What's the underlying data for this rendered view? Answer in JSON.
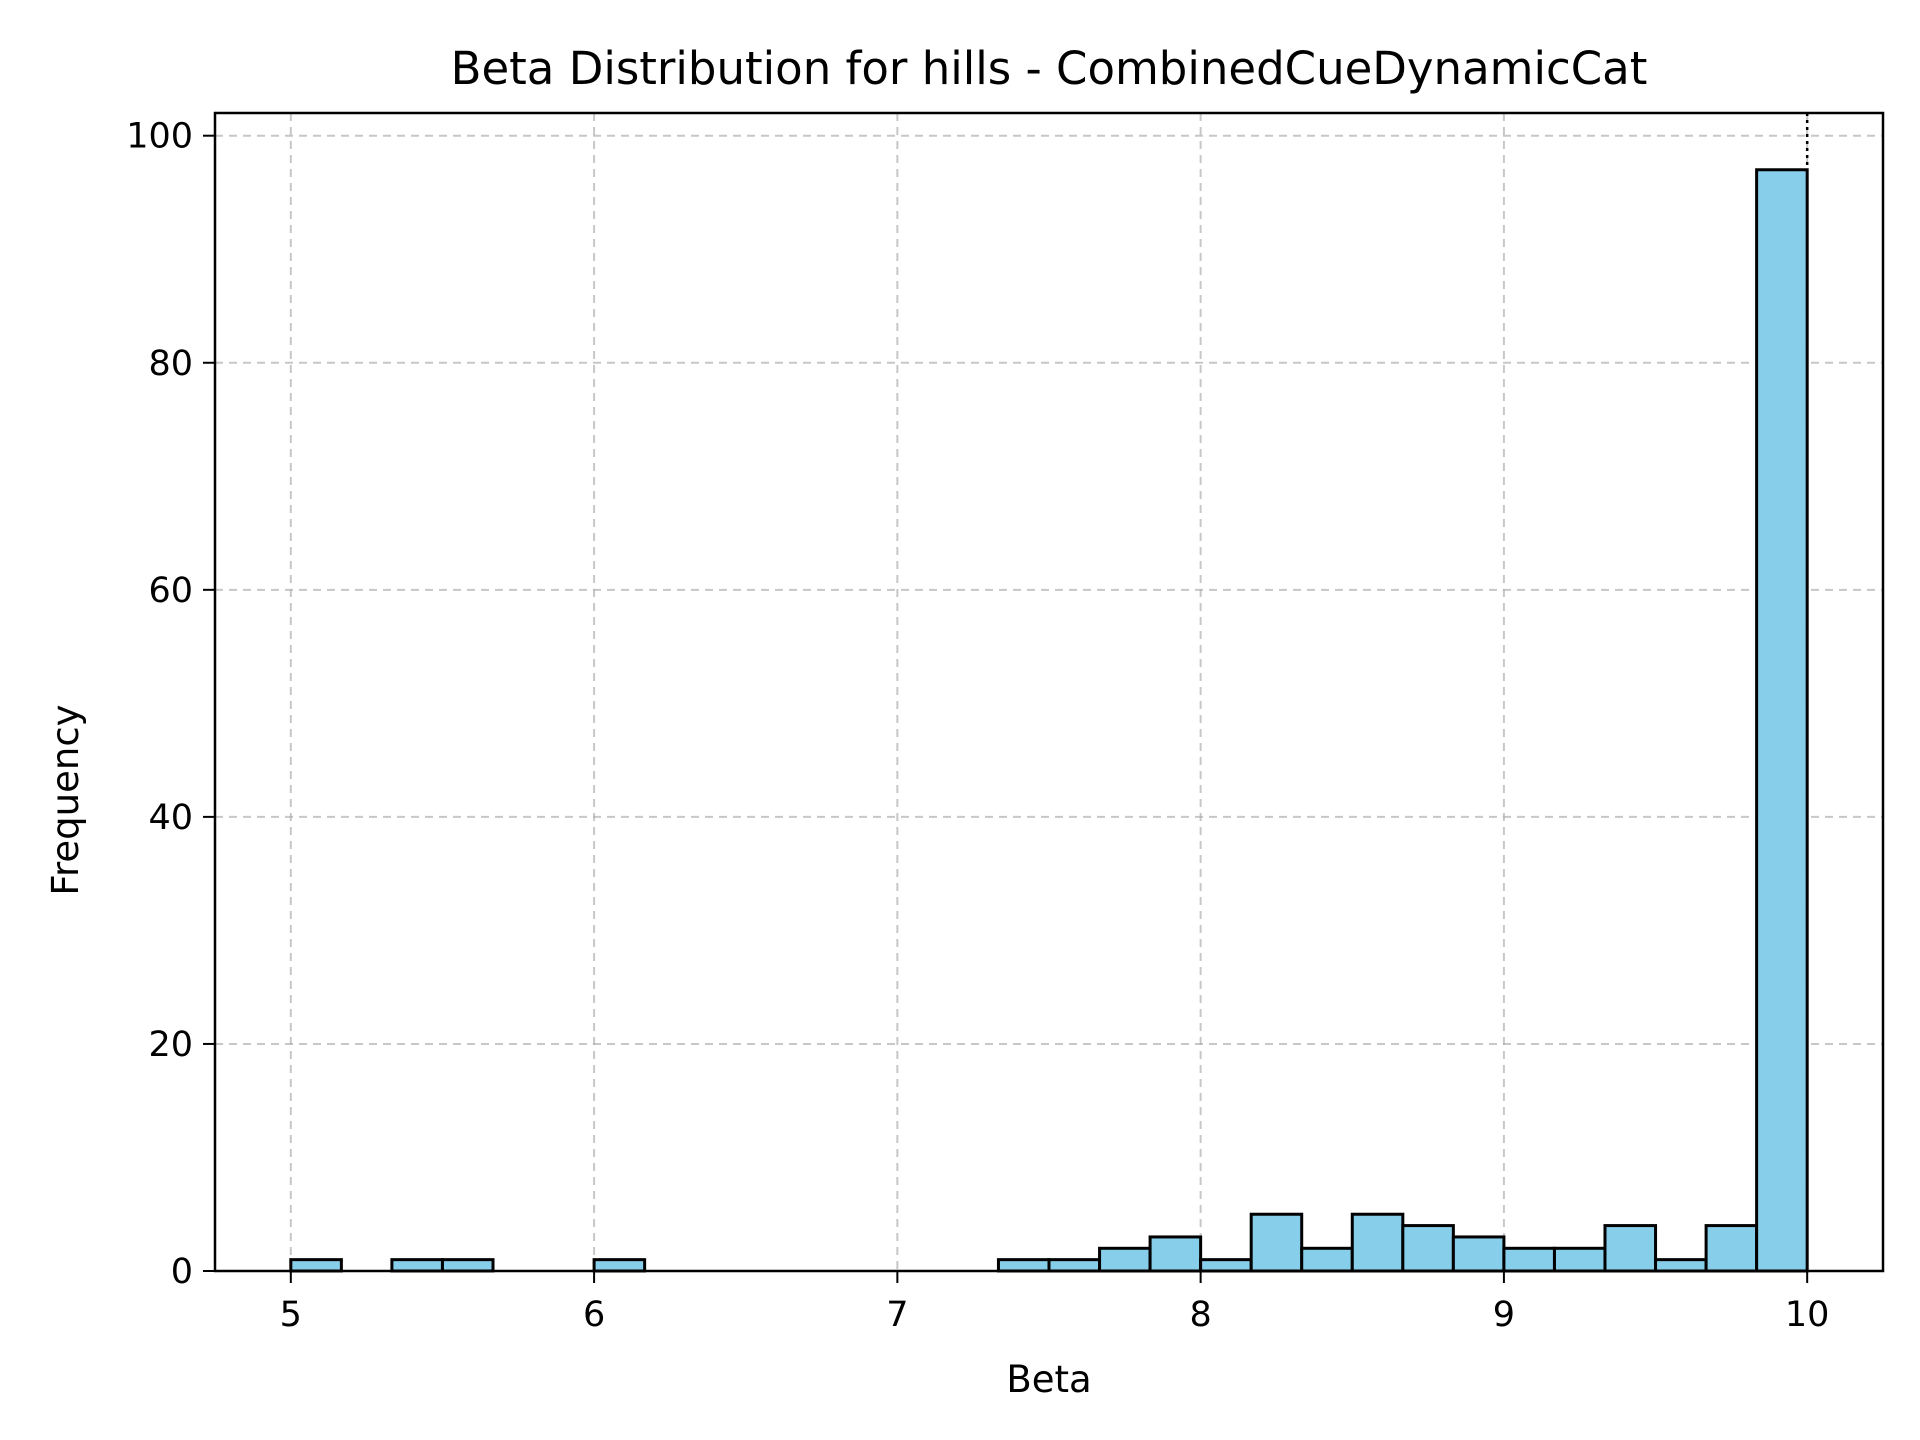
{
  "chart_data": {
    "type": "bar",
    "title": "Beta Distribution for hills - CombinedCueDynamicCat",
    "xlabel": "Beta",
    "ylabel": "Frequency",
    "xlim": [
      4.75,
      10.25
    ],
    "ylim": [
      0,
      102
    ],
    "xticks": [
      5,
      6,
      7,
      8,
      9,
      10
    ],
    "yticks": [
      0,
      20,
      40,
      60,
      80,
      100
    ],
    "grid": true,
    "bar_color": "#87CEEB",
    "edge_color": "#000000",
    "bins": [
      {
        "x0": 5.0,
        "x1": 5.1667,
        "count": 1
      },
      {
        "x0": 5.1667,
        "x1": 5.3333,
        "count": 0
      },
      {
        "x0": 5.3333,
        "x1": 5.5,
        "count": 1
      },
      {
        "x0": 5.5,
        "x1": 5.6667,
        "count": 1
      },
      {
        "x0": 5.6667,
        "x1": 5.8333,
        "count": 0
      },
      {
        "x0": 5.8333,
        "x1": 6.0,
        "count": 0
      },
      {
        "x0": 6.0,
        "x1": 6.1667,
        "count": 1
      },
      {
        "x0": 6.1667,
        "x1": 6.3333,
        "count": 0
      },
      {
        "x0": 6.3333,
        "x1": 6.5,
        "count": 0
      },
      {
        "x0": 6.5,
        "x1": 6.6667,
        "count": 0
      },
      {
        "x0": 6.6667,
        "x1": 6.8333,
        "count": 0
      },
      {
        "x0": 6.8333,
        "x1": 7.0,
        "count": 0
      },
      {
        "x0": 7.0,
        "x1": 7.1667,
        "count": 0
      },
      {
        "x0": 7.1667,
        "x1": 7.3333,
        "count": 0
      },
      {
        "x0": 7.3333,
        "x1": 7.5,
        "count": 1
      },
      {
        "x0": 7.5,
        "x1": 7.6667,
        "count": 1
      },
      {
        "x0": 7.6667,
        "x1": 7.8333,
        "count": 2
      },
      {
        "x0": 7.8333,
        "x1": 8.0,
        "count": 3
      },
      {
        "x0": 8.0,
        "x1": 8.1667,
        "count": 1
      },
      {
        "x0": 8.1667,
        "x1": 8.3333,
        "count": 5
      },
      {
        "x0": 8.3333,
        "x1": 8.5,
        "count": 2
      },
      {
        "x0": 8.5,
        "x1": 8.6667,
        "count": 5
      },
      {
        "x0": 8.6667,
        "x1": 8.8333,
        "count": 4
      },
      {
        "x0": 8.8333,
        "x1": 9.0,
        "count": 3
      },
      {
        "x0": 9.0,
        "x1": 9.1667,
        "count": 2
      },
      {
        "x0": 9.1667,
        "x1": 9.3333,
        "count": 2
      },
      {
        "x0": 9.3333,
        "x1": 9.5,
        "count": 4
      },
      {
        "x0": 9.5,
        "x1": 9.6667,
        "count": 1
      },
      {
        "x0": 9.6667,
        "x1": 9.8333,
        "count": 4
      },
      {
        "x0": 9.8333,
        "x1": 10.0,
        "count": 97
      }
    ],
    "reference_line_x": 10.0
  }
}
